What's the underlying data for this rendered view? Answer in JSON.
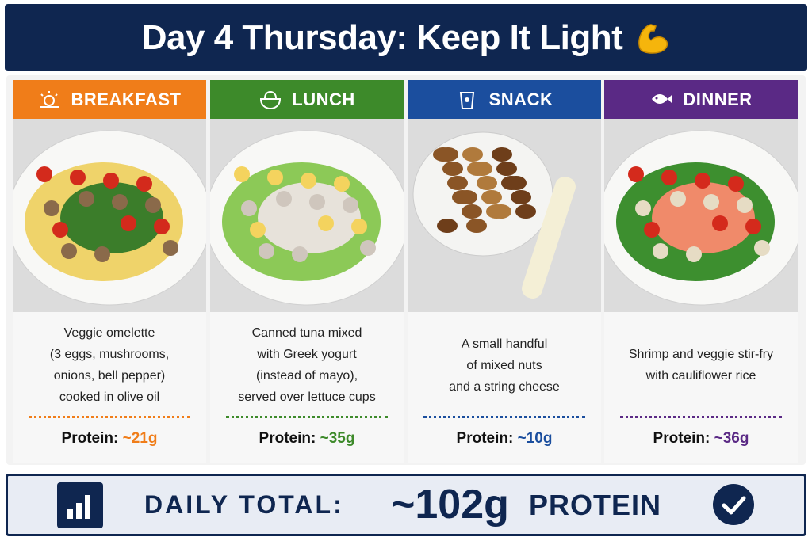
{
  "header": {
    "title": "Day 4 Thursday: Keep It Light"
  },
  "meals": [
    {
      "label": "BREAKFAST",
      "lines": [
        "Veggie omelette",
        "(3 eggs, mushrooms,",
        "onions, bell pepper)",
        "cooked in olive oil"
      ],
      "protein_label": "Protein:",
      "protein": "~21g"
    },
    {
      "label": "LUNCH",
      "lines": [
        "Canned tuna mixed",
        "with Greek yogurt",
        "(instead of mayo),",
        "served over lettuce cups"
      ],
      "protein_label": "Protein:",
      "protein": "~35g"
    },
    {
      "label": "SNACK",
      "lines": [
        "A small handful",
        "of mixed nuts",
        "and a string cheese"
      ],
      "protein_label": "Protein:",
      "protein": "~10g"
    },
    {
      "label": "DINNER",
      "lines": [
        "Shrimp and veggie stir-fry",
        "with cauliflower rice"
      ],
      "protein_label": "Protein:",
      "protein": "~36g"
    }
  ],
  "footer": {
    "label": "DAILY TOTAL:",
    "total": "~102g",
    "unit": "PROTEIN"
  }
}
